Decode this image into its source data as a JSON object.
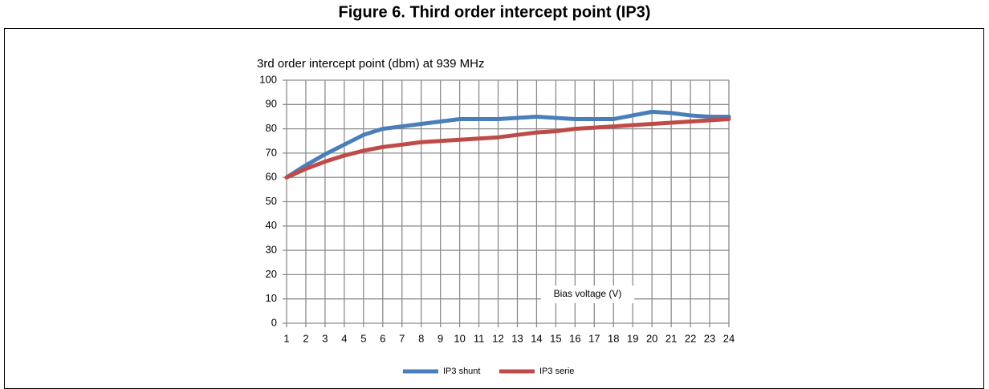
{
  "chart_data": {
    "type": "line",
    "figure_title": "Figure 6. Third order intercept point (IP3)",
    "title": "3rd order intercept point (dbm)  at 939 MHz",
    "annotation": "Bias voltage (V)",
    "x": [
      1,
      2,
      3,
      4,
      5,
      6,
      7,
      8,
      9,
      10,
      11,
      12,
      13,
      14,
      15,
      16,
      17,
      18,
      19,
      20,
      21,
      22,
      23,
      24
    ],
    "xlim": [
      1,
      24
    ],
    "ylim": [
      0,
      100
    ],
    "yticks": [
      0,
      10,
      20,
      30,
      40,
      50,
      60,
      70,
      80,
      90,
      100
    ],
    "grid": true,
    "legend": "bottom",
    "series": [
      {
        "name": "IP3 shunt",
        "color": "#4a7ebb",
        "values": [
          60,
          65,
          69.5,
          73.5,
          77.5,
          80,
          81,
          82,
          83,
          84,
          84,
          84,
          84.5,
          85,
          84.5,
          84,
          84,
          84,
          85.5,
          87,
          86.5,
          85.5,
          85,
          85
        ]
      },
      {
        "name": "IP3 serie",
        "color": "#be4b48",
        "values": [
          60,
          63.5,
          66.5,
          69,
          71,
          72.5,
          73.5,
          74.5,
          75,
          75.5,
          76,
          76.5,
          77.5,
          78.5,
          79,
          80,
          80.5,
          81,
          81.5,
          82,
          82.5,
          83,
          83.5,
          84
        ]
      }
    ]
  }
}
